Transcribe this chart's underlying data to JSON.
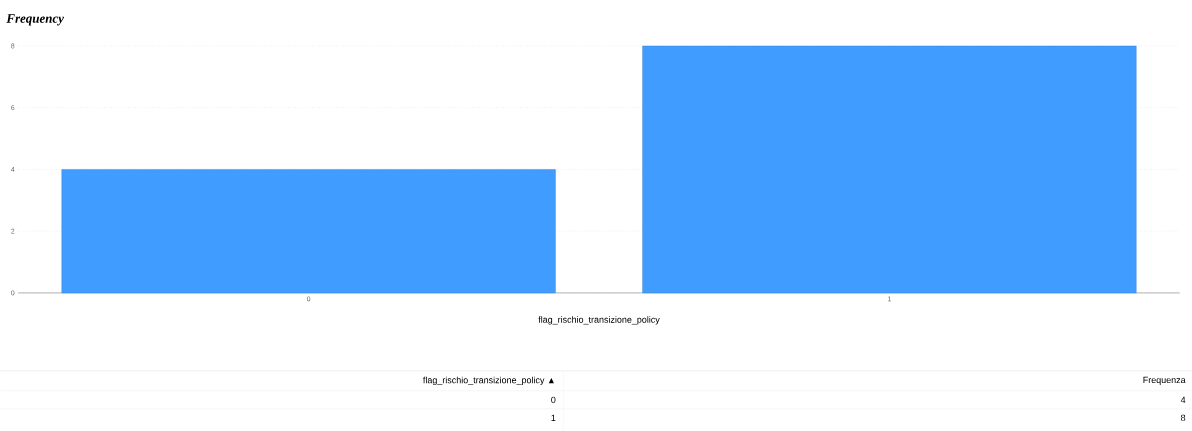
{
  "chart_data": {
    "type": "bar",
    "title": "Frequency",
    "xlabel": "flag_rischio_transizione_policy",
    "categories": [
      "0",
      "1"
    ],
    "values": [
      4,
      8
    ],
    "color": "#409cff",
    "ylim": [
      0,
      8
    ],
    "yticks": [
      0,
      2,
      4,
      6,
      8
    ],
    "grid": "y",
    "annotations": [
      "flag_rischio_transizione_policy ▲",
      "Frequenza",
      "4",
      "8"
    ]
  }
}
